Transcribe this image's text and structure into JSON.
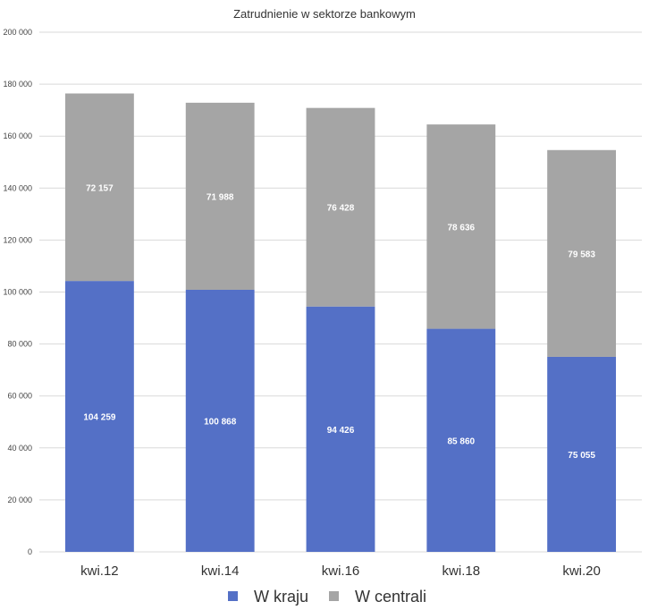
{
  "chart_data": {
    "type": "bar",
    "stacked": true,
    "title": "Zatrudnienie w sektorze bankowym",
    "xlabel": "",
    "ylabel": "",
    "categories": [
      "kwi.12",
      "kwi.14",
      "kwi.16",
      "kwi.18",
      "kwi.20"
    ],
    "ylim": [
      0,
      200000
    ],
    "yticks": [
      "0",
      "20 000",
      "40 000",
      "60 000",
      "80 000",
      "100 000",
      "120 000",
      "140 000",
      "160 000",
      "180 000",
      "200 000"
    ],
    "ytick_values": [
      0,
      20000,
      40000,
      60000,
      80000,
      100000,
      120000,
      140000,
      160000,
      180000,
      200000
    ],
    "grid": true,
    "legend_position": "bottom",
    "series": [
      {
        "name": "W kraju",
        "color": "#5470c6",
        "values": [
          104259,
          100868,
          94426,
          85860,
          75055
        ],
        "labels": [
          "104 259",
          "100 868",
          "94 426",
          "85 860",
          "75 055"
        ]
      },
      {
        "name": "W centrali",
        "color": "#a5a5a5",
        "values": [
          72157,
          71988,
          76428,
          78636,
          79583
        ],
        "labels": [
          "72 157",
          "71 988",
          "76 428",
          "78 636",
          "79 583"
        ]
      }
    ]
  }
}
